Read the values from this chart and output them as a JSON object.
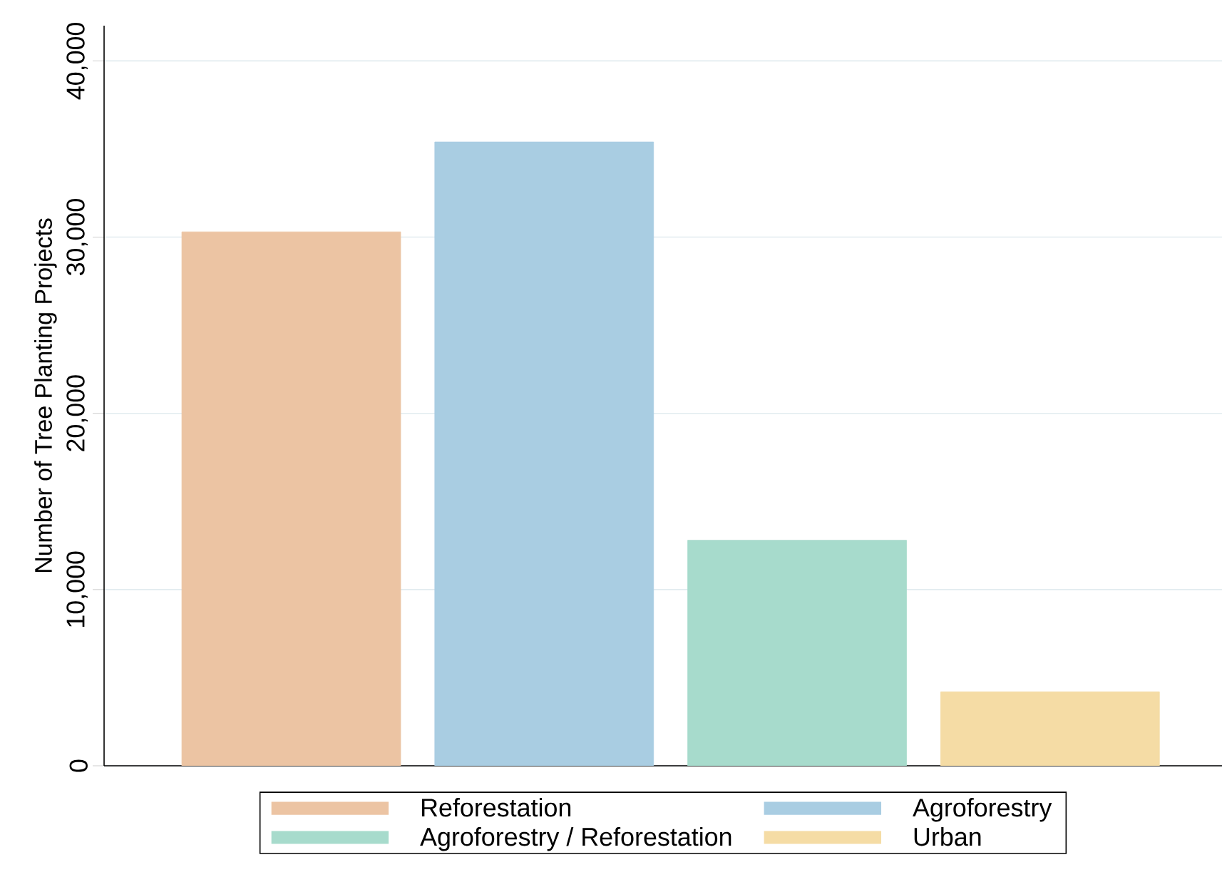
{
  "chart_data": {
    "type": "bar",
    "ylabel": "Number of Tree Planting Projects",
    "categories": [
      null,
      null,
      null,
      null
    ],
    "series": [
      {
        "name": "Reforestation",
        "color": "#ecc4a3",
        "values": [
          30300,
          null,
          null,
          null
        ]
      },
      {
        "name": "Agroforestry",
        "color": "#a9cde2",
        "values": [
          null,
          35400,
          null,
          null
        ]
      },
      {
        "name": "Agroforestry / Reforestation",
        "color": "#a7dbcc",
        "values": [
          null,
          null,
          12800,
          null
        ]
      },
      {
        "name": "Urban",
        "color": "#f5dca5",
        "values": [
          null,
          null,
          null,
          4200
        ]
      }
    ],
    "ylim": [
      0,
      42000
    ],
    "yticks": [
      {
        "value": 0,
        "label": "0"
      },
      {
        "value": 10000,
        "label": "10,000"
      },
      {
        "value": 20000,
        "label": "20,000"
      },
      {
        "value": 30000,
        "label": "30,000"
      },
      {
        "value": 40000,
        "label": "40,000"
      }
    ],
    "grid": "y",
    "legend": "bottom"
  }
}
